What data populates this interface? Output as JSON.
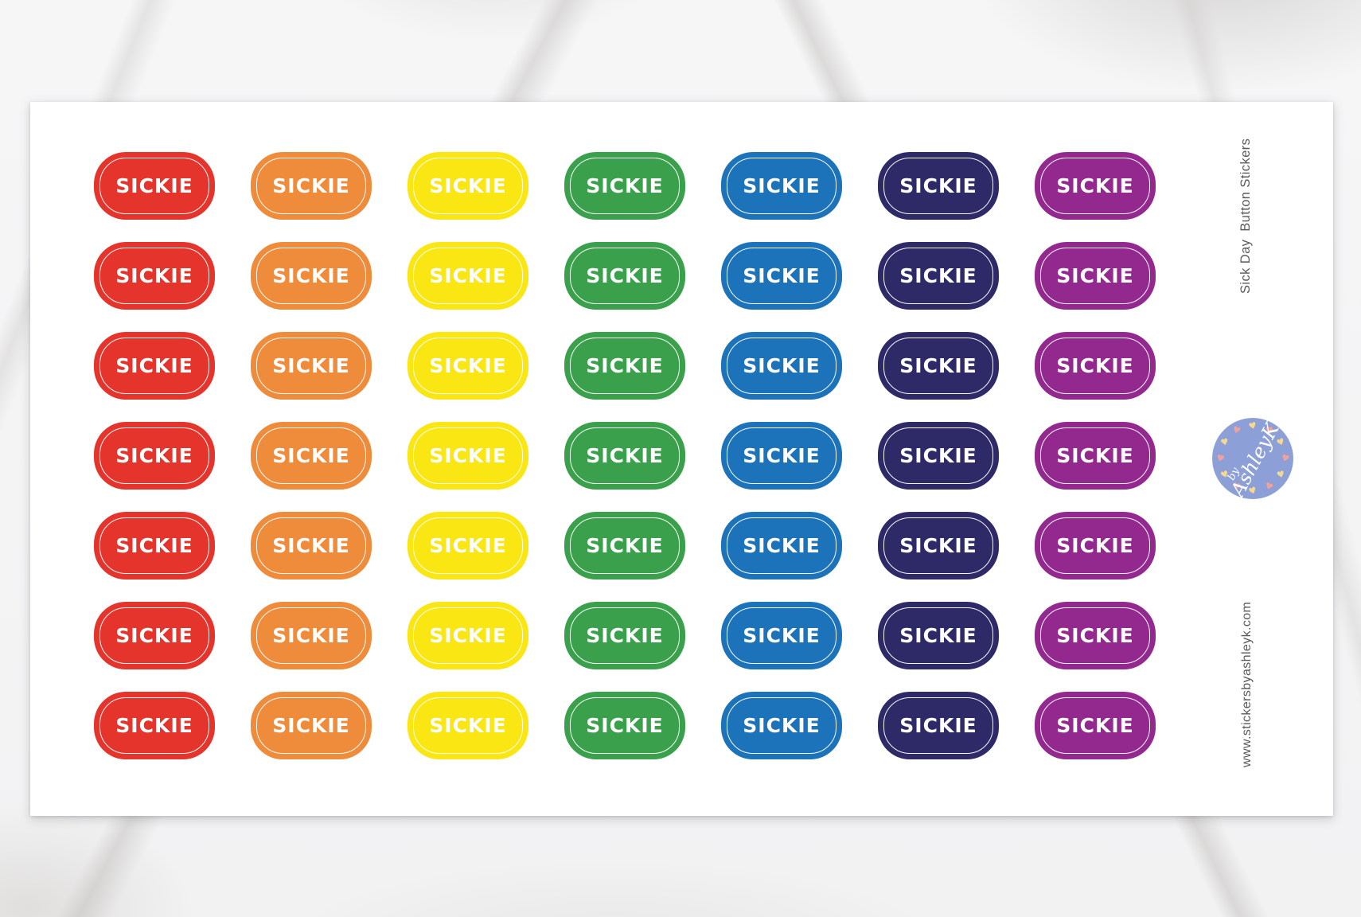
{
  "sheet": {
    "background": "#ffffff"
  },
  "sticker": {
    "label": "SICKIE",
    "text_color": "#ffffff",
    "rows": 7,
    "columns": [
      {
        "name": "red",
        "color": "#e4342c"
      },
      {
        "name": "orange",
        "color": "#ef8c3c"
      },
      {
        "name": "yellow",
        "color": "#f9e612"
      },
      {
        "name": "green",
        "color": "#3aa04c"
      },
      {
        "name": "blue",
        "color": "#1c73b9"
      },
      {
        "name": "navy",
        "color": "#2d2a67"
      },
      {
        "name": "purple",
        "color": "#93288f"
      }
    ]
  },
  "side": {
    "title": "Sick Day  Button Stickers",
    "website": "www.stickersbyashleyk.com",
    "text_color": "#58595b"
  },
  "logo": {
    "by": "by",
    "name": "AshleyK",
    "circle_color": "#8d9fd7",
    "text_color": "#ffffff",
    "heart_glyph": "♥",
    "heart_colors": [
      "#f2a19c",
      "#f6d88f"
    ]
  }
}
